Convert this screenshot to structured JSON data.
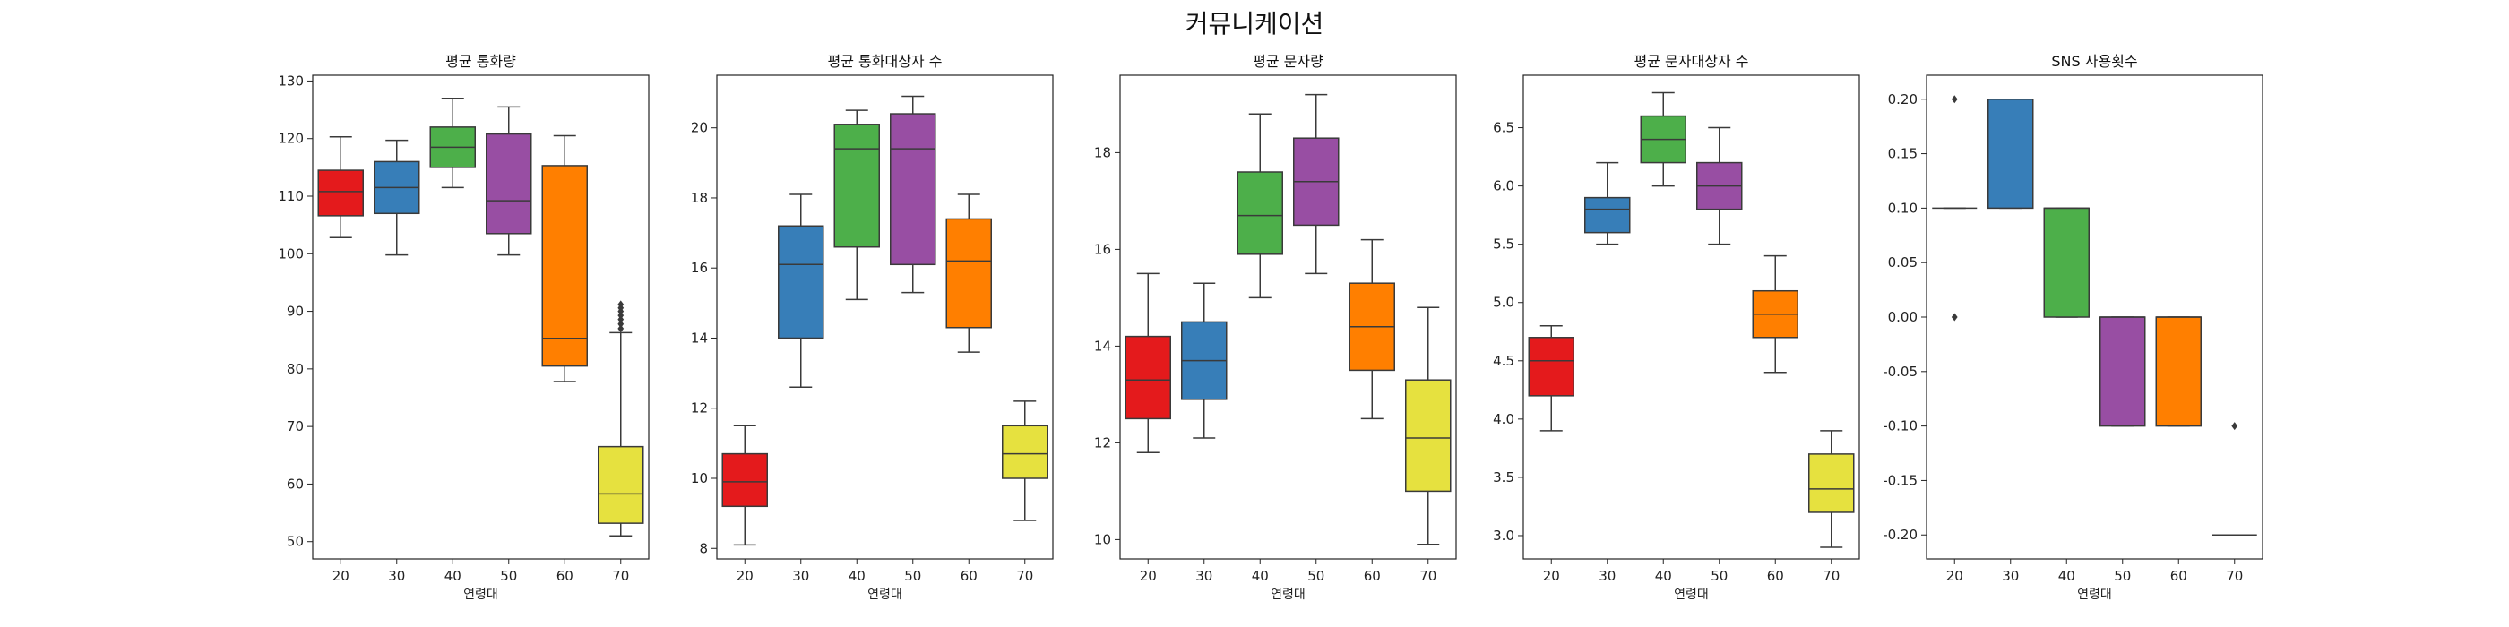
{
  "figure": {
    "title": "커뮤니케이션"
  },
  "chart_data": [
    {
      "type": "box",
      "title": "평균 통화량",
      "xlabel": "연령대",
      "ylabel": "",
      "categories": [
        "20",
        "30",
        "40",
        "50",
        "60",
        "70"
      ],
      "ylim": [
        47,
        131
      ],
      "yticks": [
        "50",
        "60",
        "70",
        "80",
        "90",
        "100",
        "110",
        "120",
        "130"
      ],
      "ytick_values": [
        50,
        60,
        70,
        80,
        90,
        100,
        110,
        120,
        130
      ],
      "boxes": [
        {
          "whisker_low": 102.8,
          "q1": 106.6,
          "median": 110.8,
          "q3": 114.5,
          "whisker_high": 120.3,
          "outliers": []
        },
        {
          "whisker_low": 99.8,
          "q1": 107.0,
          "median": 111.5,
          "q3": 116.0,
          "whisker_high": 119.7,
          "outliers": []
        },
        {
          "whisker_low": 111.5,
          "q1": 115.0,
          "median": 118.5,
          "q3": 122.0,
          "whisker_high": 127.0,
          "outliers": []
        },
        {
          "whisker_low": 99.8,
          "q1": 103.5,
          "median": 109.2,
          "q3": 120.8,
          "whisker_high": 125.5,
          "outliers": []
        },
        {
          "whisker_low": 77.8,
          "q1": 80.5,
          "median": 85.3,
          "q3": 115.3,
          "whisker_high": 120.5,
          "outliers": []
        },
        {
          "whisker_low": 51.0,
          "q1": 53.2,
          "median": 58.3,
          "q3": 66.5,
          "whisker_high": 86.3,
          "outliers": [
            87.0,
            87.8,
            88.6,
            89.3,
            90.0,
            90.6,
            91.2
          ]
        }
      ]
    },
    {
      "type": "box",
      "title": "평균 통화대상자 수",
      "xlabel": "연령대",
      "ylabel": "",
      "categories": [
        "20",
        "30",
        "40",
        "50",
        "60",
        "70"
      ],
      "ylim": [
        7.7,
        21.5
      ],
      "yticks": [
        "8",
        "10",
        "12",
        "14",
        "16",
        "18",
        "20"
      ],
      "ytick_values": [
        8,
        10,
        12,
        14,
        16,
        18,
        20
      ],
      "boxes": [
        {
          "whisker_low": 8.1,
          "q1": 9.2,
          "median": 9.9,
          "q3": 10.7,
          "whisker_high": 11.5,
          "outliers": []
        },
        {
          "whisker_low": 12.6,
          "q1": 14.0,
          "median": 16.1,
          "q3": 17.2,
          "whisker_high": 18.1,
          "outliers": []
        },
        {
          "whisker_low": 15.1,
          "q1": 16.6,
          "median": 19.4,
          "q3": 20.1,
          "whisker_high": 20.5,
          "outliers": []
        },
        {
          "whisker_low": 15.3,
          "q1": 16.1,
          "median": 19.4,
          "q3": 20.4,
          "whisker_high": 20.9,
          "outliers": []
        },
        {
          "whisker_low": 13.6,
          "q1": 14.3,
          "median": 16.2,
          "q3": 17.4,
          "whisker_high": 18.1,
          "outliers": []
        },
        {
          "whisker_low": 8.8,
          "q1": 10.0,
          "median": 10.7,
          "q3": 11.5,
          "whisker_high": 12.2,
          "outliers": []
        }
      ]
    },
    {
      "type": "box",
      "title": "평균 문자량",
      "xlabel": "연령대",
      "ylabel": "",
      "categories": [
        "20",
        "30",
        "40",
        "50",
        "60",
        "70"
      ],
      "ylim": [
        9.6,
        19.6
      ],
      "yticks": [
        "10",
        "12",
        "14",
        "16",
        "18"
      ],
      "ytick_values": [
        10,
        12,
        14,
        16,
        18
      ],
      "boxes": [
        {
          "whisker_low": 11.8,
          "q1": 12.5,
          "median": 13.3,
          "q3": 14.2,
          "whisker_high": 15.5,
          "outliers": []
        },
        {
          "whisker_low": 12.1,
          "q1": 12.9,
          "median": 13.7,
          "q3": 14.5,
          "whisker_high": 15.3,
          "outliers": []
        },
        {
          "whisker_low": 15.0,
          "q1": 15.9,
          "median": 16.7,
          "q3": 17.6,
          "whisker_high": 18.8,
          "outliers": []
        },
        {
          "whisker_low": 15.5,
          "q1": 16.5,
          "median": 17.4,
          "q3": 18.3,
          "whisker_high": 19.2,
          "outliers": []
        },
        {
          "whisker_low": 12.5,
          "q1": 13.5,
          "median": 14.4,
          "q3": 15.3,
          "whisker_high": 16.2,
          "outliers": []
        },
        {
          "whisker_low": 9.9,
          "q1": 11.0,
          "median": 12.1,
          "q3": 13.3,
          "whisker_high": 14.8,
          "outliers": []
        }
      ]
    },
    {
      "type": "box",
      "title": "평균 문자대상자 수",
      "xlabel": "연령대",
      "ylabel": "",
      "categories": [
        "20",
        "30",
        "40",
        "50",
        "60",
        "70"
      ],
      "ylim": [
        2.8,
        6.95
      ],
      "yticks": [
        "3.0",
        "3.5",
        "4.0",
        "4.5",
        "5.0",
        "5.5",
        "6.0",
        "6.5"
      ],
      "ytick_values": [
        3.0,
        3.5,
        4.0,
        4.5,
        5.0,
        5.5,
        6.0,
        6.5
      ],
      "boxes": [
        {
          "whisker_low": 3.9,
          "q1": 4.2,
          "median": 4.5,
          "q3": 4.7,
          "whisker_high": 4.8,
          "outliers": []
        },
        {
          "whisker_low": 5.5,
          "q1": 5.6,
          "median": 5.8,
          "q3": 5.9,
          "whisker_high": 6.2,
          "outliers": []
        },
        {
          "whisker_low": 6.0,
          "q1": 6.2,
          "median": 6.4,
          "q3": 6.6,
          "whisker_high": 6.8,
          "outliers": []
        },
        {
          "whisker_low": 5.5,
          "q1": 5.8,
          "median": 6.0,
          "q3": 6.2,
          "whisker_high": 6.5,
          "outliers": []
        },
        {
          "whisker_low": 4.4,
          "q1": 4.7,
          "median": 4.9,
          "q3": 5.1,
          "whisker_high": 5.4,
          "outliers": []
        },
        {
          "whisker_low": 2.9,
          "q1": 3.2,
          "median": 3.4,
          "q3": 3.7,
          "whisker_high": 3.9,
          "outliers": []
        }
      ]
    },
    {
      "type": "box",
      "title": "SNS 사용횟수",
      "xlabel": "연령대",
      "ylabel": "",
      "categories": [
        "20",
        "30",
        "40",
        "50",
        "60",
        "70"
      ],
      "ylim": [
        -0.222,
        0.222
      ],
      "yticks": [
        "0.20",
        "0.15",
        "0.10",
        "0.05",
        "0.00",
        "-0.05",
        "-0.10",
        "-0.15",
        "-0.20"
      ],
      "ytick_values": [
        0.2,
        0.15,
        0.1,
        0.05,
        0.0,
        -0.05,
        -0.1,
        -0.15,
        -0.2
      ],
      "boxes": [
        {
          "whisker_low": 0.1,
          "q1": 0.1,
          "median": 0.1,
          "q3": 0.1,
          "whisker_high": 0.1,
          "outliers": [
            0.2,
            0.0
          ]
        },
        {
          "whisker_low": 0.1,
          "q1": 0.1,
          "median": 0.2,
          "q3": 0.2,
          "whisker_high": 0.2,
          "outliers": []
        },
        {
          "whisker_low": 0.0,
          "q1": 0.0,
          "median": 0.1,
          "q3": 0.1,
          "whisker_high": 0.1,
          "outliers": []
        },
        {
          "whisker_low": -0.1,
          "q1": -0.1,
          "median": 0.0,
          "q3": 0.0,
          "whisker_high": 0.0,
          "outliers": []
        },
        {
          "whisker_low": -0.1,
          "q1": -0.1,
          "median": 0.0,
          "q3": 0.0,
          "whisker_high": 0.0,
          "outliers": []
        },
        {
          "whisker_low": -0.2,
          "q1": -0.2,
          "median": -0.2,
          "q3": -0.2,
          "whisker_high": -0.2,
          "outliers": [
            -0.1
          ]
        }
      ]
    }
  ],
  "colors": [
    "#e41a1c",
    "#377eb8",
    "#4daf4a",
    "#984ea3",
    "#ff7f00",
    "#e6e13f"
  ],
  "line_color": "#3a3a3a"
}
